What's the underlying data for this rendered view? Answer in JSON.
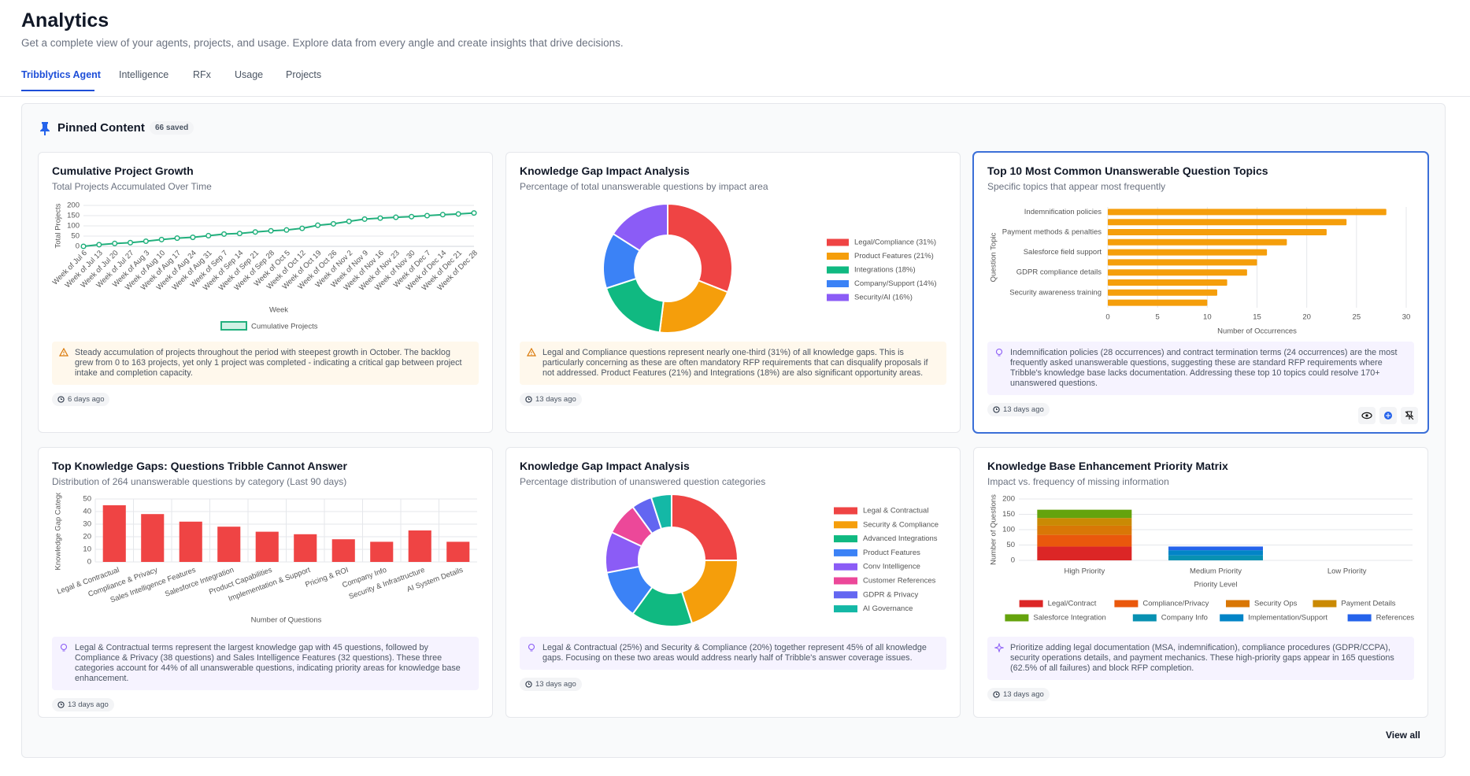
{
  "header": {
    "title": "Analytics",
    "subtitle": "Get a complete view of your agents, projects, and usage. Explore data from every angle and create insights that drive decisions."
  },
  "tabs": [
    "Tribblytics Agent",
    "Intelligence",
    "RFx",
    "Usage",
    "Projects"
  ],
  "pinned": {
    "title": "Pinned Content",
    "count": "66 saved",
    "view_all": "View all"
  },
  "chart_data": [
    {
      "type": "line",
      "title": "Cumulative Project Growth",
      "subtitle": "Total Projects Accumulated Over Time",
      "x_label": "Week",
      "y_label": "Total Projects",
      "categories": [
        "Week of Jul 6",
        "Week of Jul 13",
        "Week of Jul 20",
        "Week of Jul 27",
        "Week of Aug 3",
        "Week of Aug 10",
        "Week of Aug 17",
        "Week of Aug 24",
        "Week of Aug 31",
        "Week of Sep 7",
        "Week of Sep 14",
        "Week of Sep 21",
        "Week of Sep 28",
        "Week of Oct 5",
        "Week of Oct 12",
        "Week of Oct 19",
        "Week of Oct 26",
        "Week of Nov 2",
        "Week of Nov 9",
        "Week of Nov 16",
        "Week of Nov 23",
        "Week of Nov 30",
        "Week of Dec 7",
        "Week of Dec 14",
        "Week of Dec 21",
        "Week of Dec 28"
      ],
      "series": [
        {
          "name": "Cumulative Projects",
          "color": "#22b07d",
          "values": [
            0,
            8,
            14,
            18,
            25,
            33,
            40,
            44,
            52,
            60,
            63,
            70,
            76,
            80,
            88,
            103,
            110,
            122,
            133,
            138,
            142,
            145,
            150,
            155,
            158,
            163
          ]
        }
      ],
      "ylim": [
        0,
        200
      ],
      "yticks": [
        0,
        50,
        100,
        150,
        200
      ],
      "grid": true,
      "legend": "bottom"
    },
    {
      "type": "pie",
      "title": "Knowledge Gap Impact Analysis",
      "subtitle": "Percentage of total unanswerable questions by impact area",
      "categories": [
        "Legal/Compliance (31%)",
        "Product Features (21%)",
        "Integrations (18%)",
        "Company/Support (14%)",
        "Security/AI (16%)"
      ],
      "values": [
        31,
        21,
        18,
        14,
        16
      ],
      "colors": [
        "#ef4444",
        "#f59e0b",
        "#10b981",
        "#3b82f6",
        "#8b5cf6"
      ],
      "legend": "right"
    },
    {
      "type": "hbar",
      "title": "Top 10 Most Common Unanswerable Question Topics",
      "subtitle": "Specific topics that appear most frequently",
      "x_label": "Number of Occurrences",
      "y_label": "Question Topic",
      "categories": [
        "Indemnification policies",
        null,
        "Payment methods & penalties",
        null,
        "Salesforce field support",
        null,
        "GDPR compliance details",
        null,
        "Security awareness training",
        null
      ],
      "values": [
        28,
        24,
        22,
        18,
        16,
        15,
        14,
        12,
        11,
        10
      ],
      "color": "#f59e0b",
      "xlim": [
        0,
        30
      ],
      "xticks": [
        0,
        5,
        10,
        15,
        20,
        25,
        30
      ],
      "grid": true
    },
    {
      "type": "bar",
      "title": "Top Knowledge Gaps: Questions Tribble Cannot Answer",
      "subtitle": "Distribution of 264 unanswerable questions by category (Last 90 days)",
      "x_label": "Number of Questions",
      "y_label": "Knowledge Gap Catego",
      "categories": [
        "Legal & Contractual",
        "Compliance & Privacy",
        "Sales Intelligence Features",
        "Salesforce Integration",
        "Product Capabilities",
        "Implementation & Support",
        "Pricing & ROI",
        "Company Info",
        "Security & Infrastructure",
        "AI System Details"
      ],
      "values": [
        45,
        38,
        32,
        28,
        24,
        22,
        18,
        16,
        25,
        16
      ],
      "color": "#ef4444",
      "ylim": [
        0,
        50
      ],
      "yticks": [
        0,
        10,
        20,
        30,
        40,
        50
      ],
      "grid": true
    },
    {
      "type": "pie",
      "title": "Knowledge Gap Impact Analysis",
      "subtitle": "Percentage distribution of unanswered question categories",
      "categories": [
        "Legal & Contractual",
        "Security & Compliance",
        "Advanced Integrations",
        "Product Features",
        "Conv Intelligence",
        "Customer References",
        "GDPR & Privacy",
        "AI Governance"
      ],
      "values": [
        25,
        20,
        15,
        12,
        10,
        8,
        5,
        5
      ],
      "colors": [
        "#ef4444",
        "#f59e0b",
        "#10b981",
        "#3b82f6",
        "#8b5cf6",
        "#ec4899",
        "#6366f1",
        "#14b8a6"
      ],
      "legend": "right"
    },
    {
      "type": "stacked_bar",
      "title": "Knowledge Base Enhancement Priority Matrix",
      "subtitle": "Impact vs. frequency of missing information",
      "x_label": "Priority Level",
      "y_label": "Number of Questions",
      "categories": [
        "High Priority",
        "Medium Priority",
        "Low Priority"
      ],
      "series": [
        {
          "name": "Legal/Contract",
          "color": "#dc2626",
          "values": [
            45,
            0,
            0
          ]
        },
        {
          "name": "Compliance/Privacy",
          "color": "#ea580c",
          "values": [
            38,
            0,
            0
          ]
        },
        {
          "name": "Security Ops",
          "color": "#d97706",
          "values": [
            30,
            0,
            0
          ]
        },
        {
          "name": "Payment Details",
          "color": "#ca8a04",
          "values": [
            25,
            0,
            0
          ]
        },
        {
          "name": "Salesforce Integration",
          "color": "#65a30d",
          "values": [
            27,
            0,
            0
          ]
        },
        {
          "name": "Company Info",
          "color": "#0891b2",
          "values": [
            0,
            16,
            0
          ]
        },
        {
          "name": "Implementation/Support",
          "color": "#0284c7",
          "values": [
            0,
            17,
            0
          ]
        },
        {
          "name": "References",
          "color": "#2563eb",
          "values": [
            0,
            12,
            0
          ]
        }
      ],
      "ylim": [
        0,
        200
      ],
      "yticks": [
        0,
        50,
        100,
        150,
        200
      ],
      "grid": true,
      "legend": "bottom"
    }
  ],
  "cards": [
    {
      "insight": "Steady accumulation of projects throughout the period with steepest growth in October. The backlog grew from 0 to 163 projects, yet only 1 project was completed - indicating a critical gap between project intake and completion capacity.",
      "time": "6 days ago"
    },
    {
      "insight": "Legal and Compliance questions represent nearly one-third (31%) of all knowledge gaps. This is particularly concerning as these are often mandatory RFP requirements that can disqualify proposals if not addressed. Product Features (21%) and Integrations (18%) are also significant opportunity areas.",
      "time": "13 days ago"
    },
    {
      "insight": "Indemnification policies (28 occurrences) and contract termination terms (24 occurrences) are the most frequently asked unanswerable questions, suggesting these are standard RFP requirements where Tribble's knowledge base lacks documentation. Addressing these top 10 topics could resolve 170+ unanswered questions.",
      "time": "13 days ago"
    },
    {
      "insight": "Legal & Contractual terms represent the largest knowledge gap with 45 questions, followed by Compliance & Privacy (38 questions) and Sales Intelligence Features (32 questions). These three categories account for 44% of all unanswerable questions, indicating priority areas for knowledge base enhancement.",
      "time": "13 days ago"
    },
    {
      "insight": "Legal & Contractual (25%) and Security & Compliance (20%) together represent 45% of all knowledge gaps. Focusing on these two areas would address nearly half of Tribble's answer coverage issues.",
      "time": "13 days ago"
    },
    {
      "insight": "Prioritize adding legal documentation (MSA, indemnification), compliance procedures (GDPR/CCPA), security operations details, and payment mechanics. These high-priority gaps appear in 165 questions (62.5% of all failures) and block RFP completion.",
      "time": "13 days ago"
    }
  ]
}
